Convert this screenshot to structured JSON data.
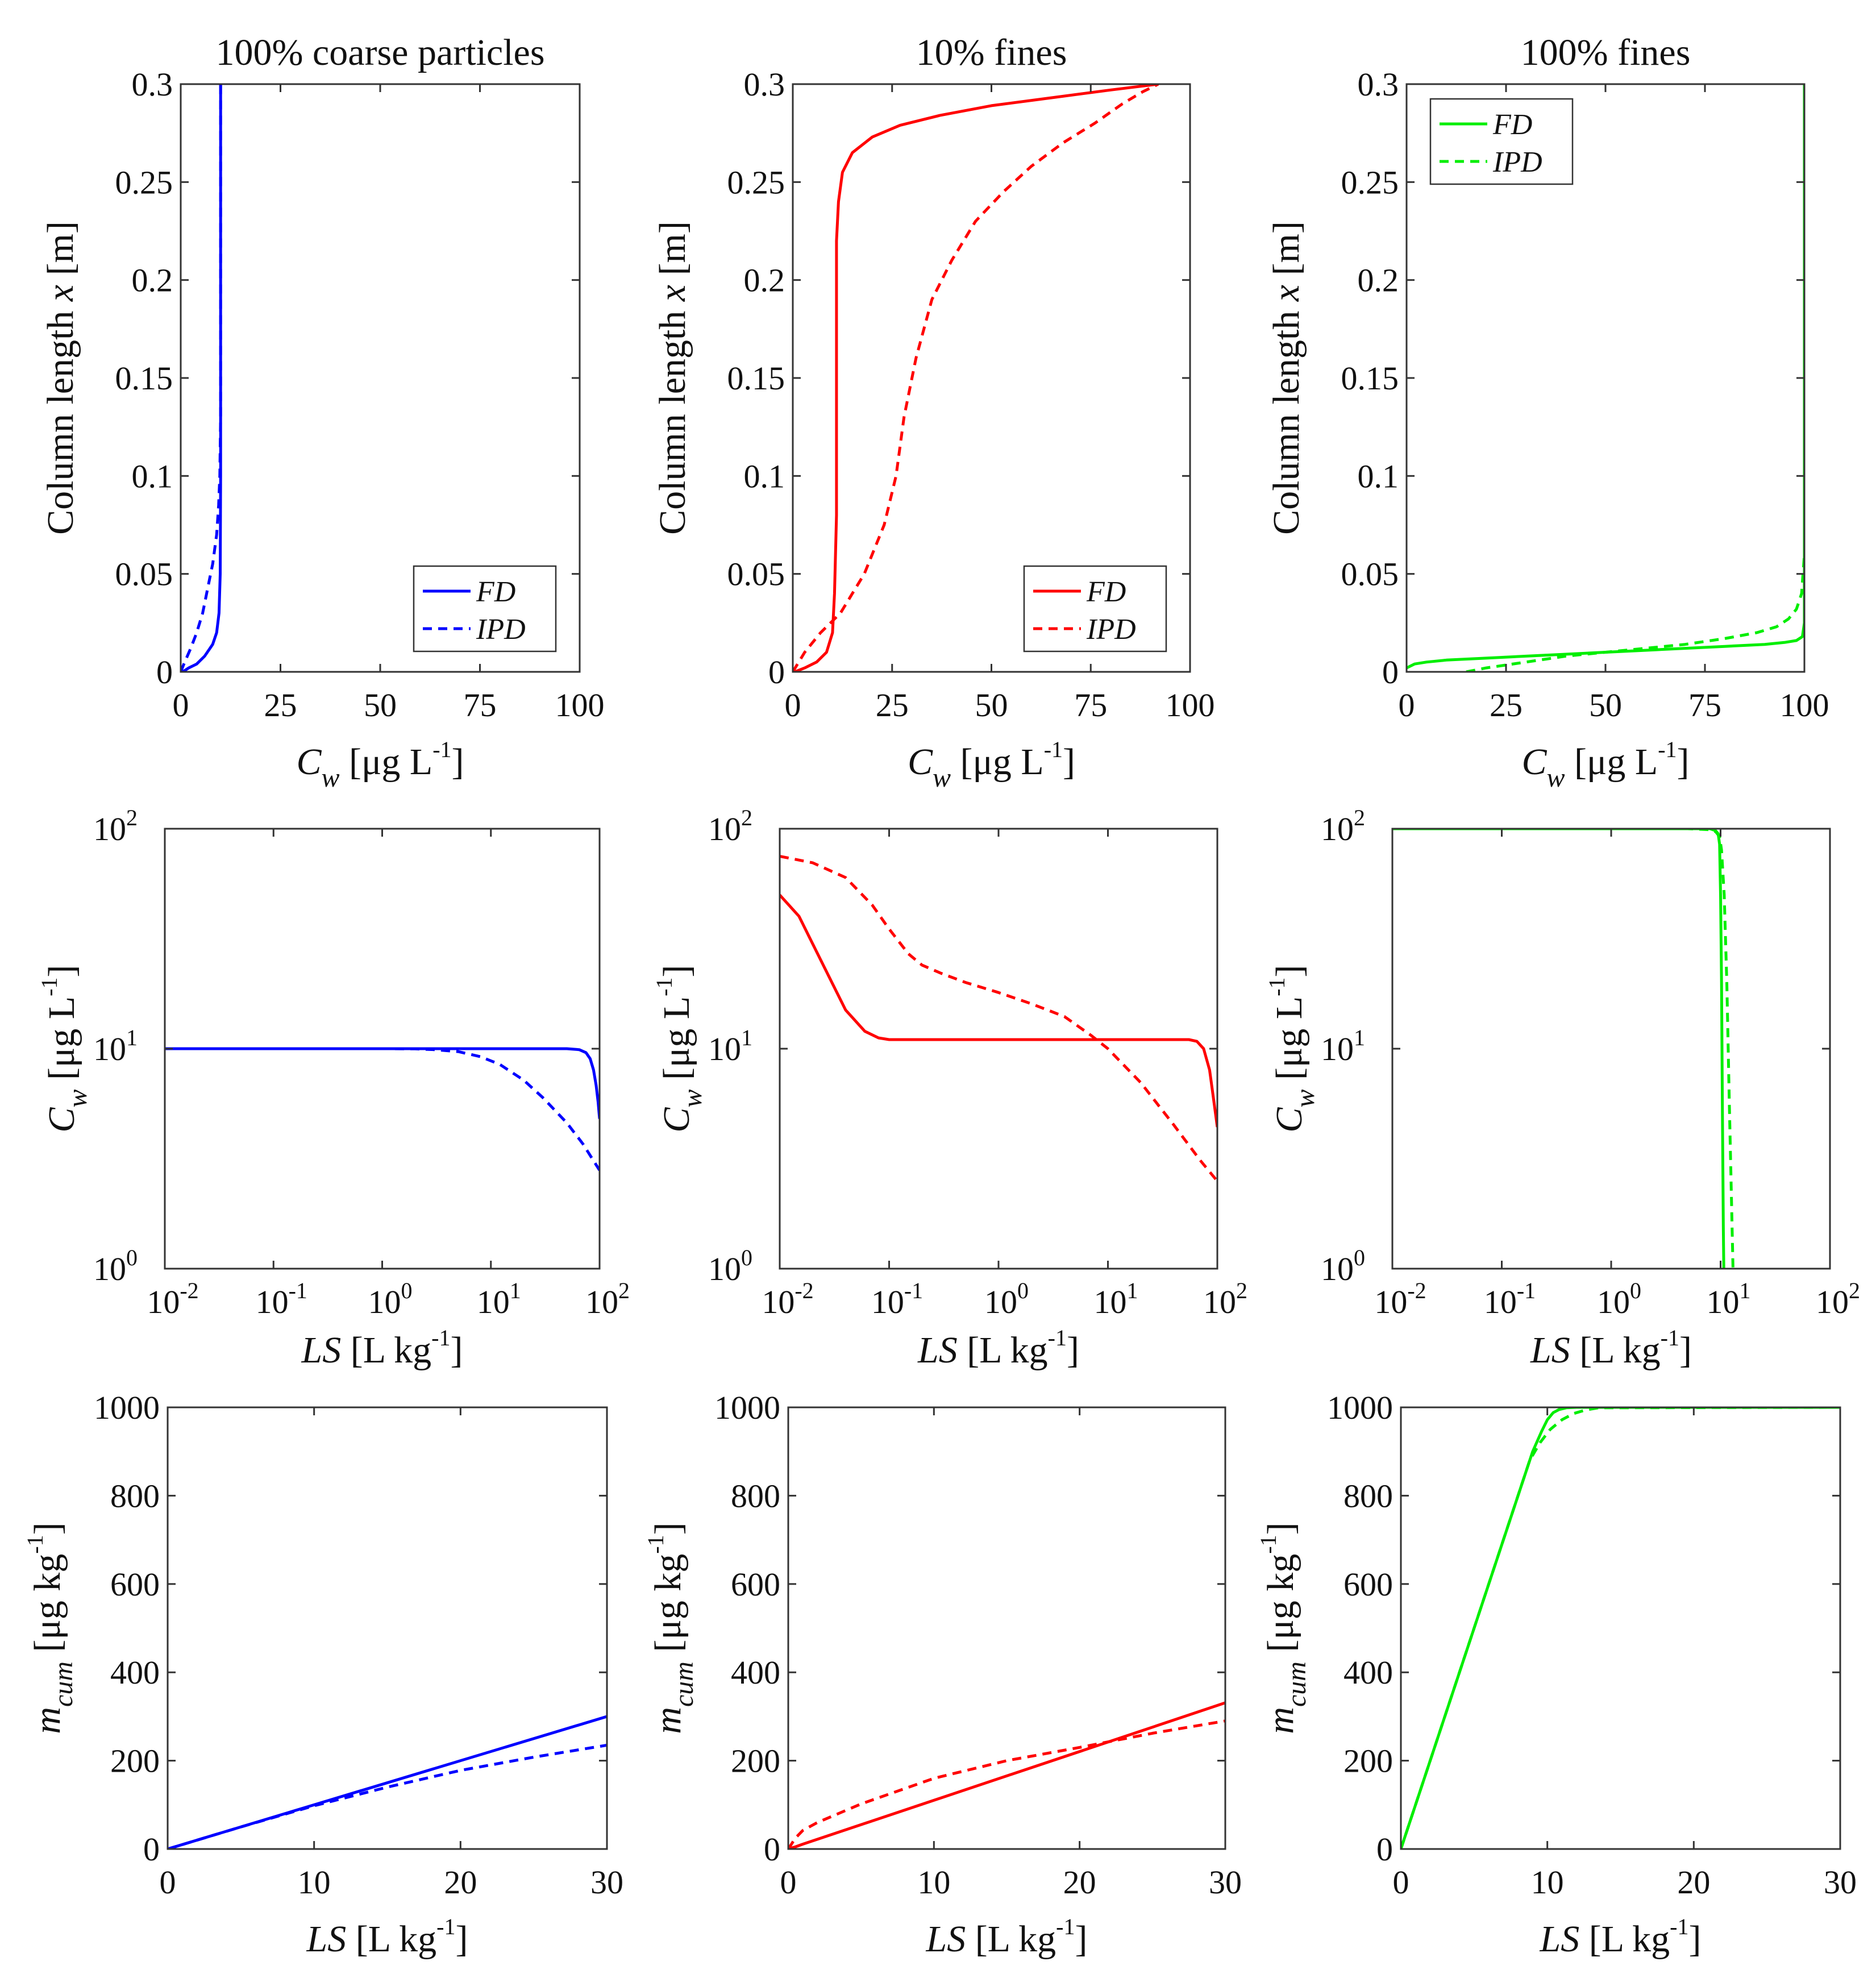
{
  "chart_data": [
    {
      "id": "a1",
      "type": "line",
      "title": "100% coarse particles",
      "color": "#0000ff",
      "xscale": "linear",
      "yscale": "linear",
      "xlim": [
        0,
        100
      ],
      "ylim": [
        0,
        0.3
      ],
      "xticks": [
        0,
        25,
        50,
        75,
        100
      ],
      "yticks": [
        0,
        0.05,
        0.1,
        0.15,
        0.2,
        0.25,
        0.3
      ],
      "xticklabels": [
        "0",
        "25",
        "50",
        "75",
        "100"
      ],
      "yticklabels": [
        "0",
        "0.05",
        "0.1",
        "0.15",
        "0.2",
        "0.25",
        "0.3"
      ],
      "xlabel": {
        "main": "C",
        "sub": "w",
        "unit": "[μg L",
        "exp": "-1",
        "close": "]"
      },
      "ylabel": {
        "pre": "Column length ",
        "var": "x",
        "post": " [m]"
      },
      "legend": {
        "position": "bottom-right",
        "entries": [
          "FD",
          "IPD"
        ]
      },
      "series": [
        {
          "name": "FD",
          "style": "solid",
          "x": [
            0.5,
            2,
            4,
            6,
            8,
            9,
            9.6,
            9.9,
            10,
            10,
            10
          ],
          "y": [
            0,
            0.002,
            0.004,
            0.008,
            0.014,
            0.02,
            0.03,
            0.05,
            0.1,
            0.2,
            0.3
          ]
        },
        {
          "name": "IPD",
          "style": "dashed",
          "x": [
            0,
            1,
            2.5,
            4,
            5.5,
            7,
            8,
            9,
            9.5,
            9.8,
            10,
            10
          ],
          "y": [
            0,
            0.005,
            0.012,
            0.02,
            0.03,
            0.045,
            0.055,
            0.07,
            0.085,
            0.1,
            0.13,
            0.3
          ]
        }
      ]
    },
    {
      "id": "a2",
      "type": "line",
      "title": "10% fines",
      "color": "#ff0000",
      "xscale": "linear",
      "yscale": "linear",
      "xlim": [
        0,
        100
      ],
      "ylim": [
        0,
        0.3
      ],
      "xticks": [
        0,
        25,
        50,
        75,
        100
      ],
      "yticks": [
        0,
        0.05,
        0.1,
        0.15,
        0.2,
        0.25,
        0.3
      ],
      "xticklabels": [
        "0",
        "25",
        "50",
        "75",
        "100"
      ],
      "yticklabels": [
        "0",
        "0.05",
        "0.1",
        "0.15",
        "0.2",
        "0.25",
        "0.3"
      ],
      "xlabel": {
        "main": "C",
        "sub": "w",
        "unit": "[μg L",
        "exp": "-1",
        "close": "]"
      },
      "ylabel": {
        "pre": "Column length ",
        "var": "x",
        "post": " [m]"
      },
      "legend": {
        "position": "bottom-right",
        "entries": [
          "FD",
          "IPD"
        ]
      },
      "series": [
        {
          "name": "FD",
          "style": "solid",
          "x": [
            0.5,
            3,
            6,
            8.5,
            10,
            10.5,
            11,
            11,
            11,
            11.5,
            12.5,
            15,
            20,
            27,
            37,
            50,
            65,
            80,
            92
          ],
          "y": [
            0,
            0.002,
            0.005,
            0.01,
            0.02,
            0.04,
            0.08,
            0.15,
            0.22,
            0.24,
            0.255,
            0.265,
            0.273,
            0.279,
            0.284,
            0.289,
            0.293,
            0.297,
            0.3
          ]
        },
        {
          "name": "IPD",
          "style": "dashed",
          "x": [
            0,
            3,
            7,
            12,
            18,
            23,
            26,
            28,
            31,
            35,
            40,
            46,
            53,
            60,
            68,
            76,
            83,
            88,
            92
          ],
          "y": [
            0,
            0.01,
            0.02,
            0.03,
            0.05,
            0.075,
            0.1,
            0.13,
            0.16,
            0.19,
            0.21,
            0.23,
            0.245,
            0.258,
            0.27,
            0.28,
            0.29,
            0.296,
            0.3
          ]
        }
      ]
    },
    {
      "id": "a3",
      "type": "line",
      "title": "100% fines",
      "color": "#00ee00",
      "xscale": "linear",
      "yscale": "linear",
      "xlim": [
        0,
        100
      ],
      "ylim": [
        0,
        0.3
      ],
      "xticks": [
        0,
        25,
        50,
        75,
        100
      ],
      "yticks": [
        0,
        0.05,
        0.1,
        0.15,
        0.2,
        0.25,
        0.3
      ],
      "xticklabels": [
        "0",
        "25",
        "50",
        "75",
        "100"
      ],
      "yticklabels": [
        "0",
        "0.05",
        "0.1",
        "0.15",
        "0.2",
        "0.25",
        "0.3"
      ],
      "xlabel": {
        "main": "C",
        "sub": "w",
        "unit": "[μg L",
        "exp": "-1",
        "close": "]"
      },
      "ylabel": {
        "pre": "Column length ",
        "var": "x",
        "post": " [m]"
      },
      "legend": {
        "position": "top-left",
        "entries": [
          "FD",
          "IPD"
        ]
      },
      "series": [
        {
          "name": "FD",
          "style": "solid",
          "x": [
            0,
            2,
            5,
            10,
            20,
            30,
            40,
            50,
            60,
            70,
            80,
            90,
            95,
            98,
            99.5,
            100,
            100,
            100
          ],
          "y": [
            0.002,
            0.004,
            0.005,
            0.006,
            0.007,
            0.008,
            0.009,
            0.01,
            0.011,
            0.012,
            0.013,
            0.014,
            0.015,
            0.016,
            0.018,
            0.025,
            0.05,
            0.3
          ]
        },
        {
          "name": "IPD",
          "style": "dashed",
          "x": [
            15,
            20,
            30,
            40,
            50,
            60,
            70,
            80,
            88,
            93,
            96,
            98,
            99.3,
            100,
            100
          ],
          "y": [
            0,
            0.002,
            0.005,
            0.008,
            0.01,
            0.012,
            0.014,
            0.017,
            0.02,
            0.023,
            0.027,
            0.032,
            0.04,
            0.06,
            0.3
          ]
        }
      ]
    },
    {
      "id": "b1",
      "type": "line",
      "color": "#0000ff",
      "xscale": "log",
      "yscale": "log",
      "xlim": [
        0.01,
        100
      ],
      "ylim": [
        1,
        100
      ],
      "xticks": [
        0.01,
        0.1,
        1,
        10,
        100
      ],
      "yticks": [
        1,
        10,
        100
      ],
      "xticklabels": [
        [
          "10",
          "-2"
        ],
        [
          "10",
          "-1"
        ],
        [
          "10",
          "0"
        ],
        [
          "10",
          "1"
        ],
        [
          "10",
          "2"
        ]
      ],
      "yticklabels": [
        [
          "10",
          "0"
        ],
        [
          "10",
          "1"
        ],
        [
          "10",
          "2"
        ]
      ],
      "xlabel": {
        "var": "LS",
        "unit": " [L kg",
        "exp": "-1",
        "close": "]"
      },
      "ylabel": {
        "main": "C",
        "sub": "w",
        "unit": " [μg L",
        "exp": "-1",
        "close": "]"
      },
      "series": [
        {
          "name": "FD",
          "style": "solid",
          "x": [
            0.01,
            1,
            10,
            50,
            65,
            75,
            82,
            88,
            93,
            97,
            100
          ],
          "y": [
            10,
            10,
            10,
            10,
            9.9,
            9.6,
            9,
            8,
            6.8,
            5.7,
            4.8
          ]
        },
        {
          "name": "IPD",
          "style": "dashed",
          "x": [
            0.01,
            1,
            2,
            3,
            5,
            8,
            12,
            20,
            30,
            50,
            70,
            100
          ],
          "y": [
            10,
            10,
            9.98,
            9.9,
            9.7,
            9.2,
            8.5,
            7.2,
            6,
            4.6,
            3.7,
            2.8
          ]
        }
      ]
    },
    {
      "id": "b2",
      "type": "line",
      "color": "#ff0000",
      "xscale": "log",
      "yscale": "log",
      "xlim": [
        0.01,
        100
      ],
      "ylim": [
        1,
        100
      ],
      "xticks": [
        0.01,
        0.1,
        1,
        10,
        100
      ],
      "yticks": [
        1,
        10,
        100
      ],
      "xticklabels": [
        [
          "10",
          "-2"
        ],
        [
          "10",
          "-1"
        ],
        [
          "10",
          "0"
        ],
        [
          "10",
          "1"
        ],
        [
          "10",
          "2"
        ]
      ],
      "yticklabels": [
        [
          "10",
          "0"
        ],
        [
          "10",
          "1"
        ],
        [
          "10",
          "2"
        ]
      ],
      "xlabel": {
        "var": "LS",
        "unit": " [L kg",
        "exp": "-1",
        "close": "]"
      },
      "ylabel": {
        "main": "C",
        "sub": "w",
        "unit": " [μg L",
        "exp": "-1",
        "close": "]"
      },
      "series": [
        {
          "name": "FD",
          "style": "solid",
          "x": [
            0.01,
            0.015,
            0.02,
            0.03,
            0.04,
            0.06,
            0.08,
            0.1,
            0.2,
            1,
            10,
            40,
            55,
            65,
            75,
            85,
            92,
            100
          ],
          "y": [
            50,
            40,
            30,
            20,
            15,
            12,
            11.2,
            11,
            11,
            11,
            11,
            11,
            11,
            10.8,
            10,
            8,
            6,
            4.4
          ]
        },
        {
          "name": "IPD",
          "style": "dashed",
          "x": [
            0.01,
            0.02,
            0.04,
            0.07,
            0.1,
            0.15,
            0.2,
            0.3,
            0.5,
            1,
            2,
            4,
            7,
            10,
            20,
            40,
            70,
            100
          ],
          "y": [
            75,
            70,
            60,
            45,
            35,
            27,
            24,
            22,
            20,
            18,
            16,
            14,
            11.5,
            10,
            7,
            4.5,
            3.1,
            2.5
          ]
        }
      ]
    },
    {
      "id": "b3",
      "type": "line",
      "color": "#00ee00",
      "xscale": "log",
      "yscale": "log",
      "xlim": [
        0.01,
        100
      ],
      "ylim": [
        1,
        100
      ],
      "xticks": [
        0.01,
        0.1,
        1,
        10,
        100
      ],
      "yticks": [
        1,
        10,
        100
      ],
      "xticklabels": [
        [
          "10",
          "-2"
        ],
        [
          "10",
          "-1"
        ],
        [
          "10",
          "0"
        ],
        [
          "10",
          "1"
        ],
        [
          "10",
          "2"
        ]
      ],
      "yticklabels": [
        [
          "10",
          "0"
        ],
        [
          "10",
          "1"
        ],
        [
          "10",
          "2"
        ]
      ],
      "xlabel": {
        "var": "LS",
        "unit": " [L kg",
        "exp": "-1",
        "close": "]"
      },
      "ylabel": {
        "main": "C",
        "sub": "w",
        "unit": " [μg L",
        "exp": "-1",
        "close": "]"
      },
      "series": [
        {
          "name": "FD",
          "style": "solid",
          "x": [
            0.01,
            5,
            8,
            9,
            9.5,
            9.8,
            10,
            10.2,
            10.4,
            10.6,
            10.7
          ],
          "y": [
            100,
            100,
            100,
            98,
            95,
            85,
            50,
            20,
            5,
            1.5,
            1
          ]
        },
        {
          "name": "IPD",
          "style": "dashed",
          "x": [
            0.01,
            5,
            8,
            9,
            9.8,
            10.2,
            10.8,
            11.4,
            12,
            12.6,
            13
          ],
          "y": [
            100,
            100,
            99,
            97,
            92,
            80,
            50,
            20,
            6,
            2,
            1
          ]
        }
      ]
    },
    {
      "id": "c1",
      "type": "line",
      "color": "#0000ff",
      "xscale": "linear",
      "yscale": "linear",
      "xlim": [
        0,
        30
      ],
      "ylim": [
        0,
        1000
      ],
      "xticks": [
        0,
        10,
        20,
        30
      ],
      "yticks": [
        0,
        200,
        400,
        600,
        800,
        1000
      ],
      "xticklabels": [
        "0",
        "10",
        "20",
        "30"
      ],
      "yticklabels": [
        "0",
        "200",
        "400",
        "600",
        "800",
        "1000"
      ],
      "xlabel": {
        "var": "LS",
        "unit": " [L kg",
        "exp": "-1",
        "close": "]"
      },
      "ylabel": {
        "main": "m",
        "sub": "cum",
        "unit": " [μg kg",
        "exp": "-1",
        "close": "]"
      },
      "series": [
        {
          "name": "FD",
          "style": "solid",
          "x": [
            0,
            30
          ],
          "y": [
            0,
            300
          ]
        },
        {
          "name": "IPD",
          "style": "dashed",
          "x": [
            0,
            5,
            10,
            15,
            20,
            25,
            30
          ],
          "y": [
            0,
            50,
            98,
            140,
            178,
            208,
            235
          ]
        }
      ]
    },
    {
      "id": "c2",
      "type": "line",
      "color": "#ff0000",
      "xscale": "linear",
      "yscale": "linear",
      "xlim": [
        0,
        30
      ],
      "ylim": [
        0,
        1000
      ],
      "xticks": [
        0,
        10,
        20,
        30
      ],
      "yticks": [
        0,
        200,
        400,
        600,
        800,
        1000
      ],
      "xticklabels": [
        "0",
        "10",
        "20",
        "30"
      ],
      "yticklabels": [
        "0",
        "200",
        "400",
        "600",
        "800",
        "1000"
      ],
      "xlabel": {
        "var": "LS",
        "unit": " [L kg",
        "exp": "-1",
        "close": "]"
      },
      "ylabel": {
        "main": "m",
        "sub": "cum",
        "unit": " [μg kg",
        "exp": "-1",
        "close": "]"
      },
      "series": [
        {
          "name": "FD",
          "style": "solid",
          "x": [
            0,
            0.5,
            1,
            30
          ],
          "y": [
            0,
            5,
            11,
            331
          ]
        },
        {
          "name": "IPD",
          "style": "dashed",
          "x": [
            0,
            0.5,
            1,
            2,
            5,
            10,
            15,
            20,
            25,
            30
          ],
          "y": [
            0,
            25,
            42,
            60,
            102,
            160,
            200,
            230,
            262,
            290
          ]
        }
      ]
    },
    {
      "id": "c3",
      "type": "line",
      "color": "#00ee00",
      "xscale": "linear",
      "yscale": "linear",
      "xlim": [
        0,
        30
      ],
      "ylim": [
        0,
        1000
      ],
      "xticks": [
        0,
        10,
        20,
        30
      ],
      "yticks": [
        0,
        200,
        400,
        600,
        800,
        1000
      ],
      "xticklabels": [
        "0",
        "10",
        "20",
        "30"
      ],
      "yticklabels": [
        "0",
        "200",
        "400",
        "600",
        "800",
        "1000"
      ],
      "xlabel": {
        "var": "LS",
        "unit": " [L kg",
        "exp": "-1",
        "close": "]"
      },
      "ylabel": {
        "main": "m",
        "sub": "cum",
        "unit": " [μg kg",
        "exp": "-1",
        "close": "]"
      },
      "series": [
        {
          "name": "FD",
          "style": "solid",
          "x": [
            0,
            9,
            9.6,
            10,
            10.4,
            10.8,
            11.3,
            12,
            30
          ],
          "y": [
            0,
            900,
            945,
            972,
            988,
            995,
            999,
            1000,
            1000
          ]
        },
        {
          "name": "IPD",
          "style": "dashed",
          "x": [
            0,
            8.8,
            9.5,
            10.2,
            11,
            11.8,
            12.6,
            13.5,
            30
          ],
          "y": [
            0,
            880,
            920,
            950,
            972,
            986,
            994,
            999,
            1000
          ]
        }
      ]
    }
  ]
}
